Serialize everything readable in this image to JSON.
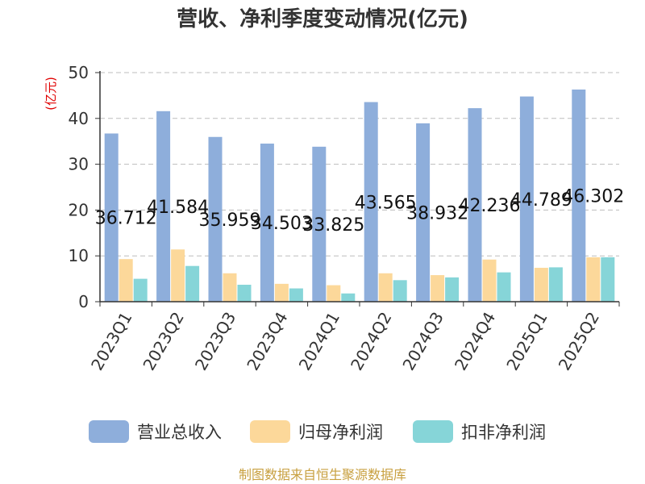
{
  "chart_data": {
    "type": "bar",
    "title": "营收、净利季度变动情况(亿元)",
    "unit_label": "(亿元)",
    "categories": [
      "2023Q1",
      "2023Q2",
      "2023Q3",
      "2023Q4",
      "2024Q1",
      "2024Q2",
      "2024Q3",
      "2024Q4",
      "2025Q1",
      "2025Q2"
    ],
    "series": [
      {
        "name": "营业总收入",
        "color": "#8eaedb",
        "values": [
          36.712,
          41.584,
          35.959,
          34.503,
          33.825,
          43.565,
          38.932,
          42.236,
          44.789,
          46.302
        ]
      },
      {
        "name": "归母净利润",
        "color": "#fcd89a",
        "values": [
          9.3,
          11.4,
          6.2,
          3.9,
          3.6,
          6.2,
          5.8,
          9.2,
          7.4,
          9.7
        ]
      },
      {
        "name": "扣非净利润",
        "color": "#86d5d8",
        "values": [
          5.0,
          7.8,
          3.7,
          2.9,
          1.8,
          4.7,
          5.3,
          6.4,
          7.5,
          9.7
        ]
      }
    ],
    "data_labels": [
      "36.712",
      "41.584",
      "35.959",
      "34.503",
      "33.825",
      "43.565",
      "38.932",
      "42.236",
      "44.789",
      "46.302"
    ],
    "yticks": [
      "0",
      "10",
      "20",
      "30",
      "40",
      "50"
    ],
    "ylim": [
      0,
      50
    ],
    "grid": true,
    "legend_position": "bottom"
  },
  "source_text": "制图数据来自恒生聚源数据库"
}
